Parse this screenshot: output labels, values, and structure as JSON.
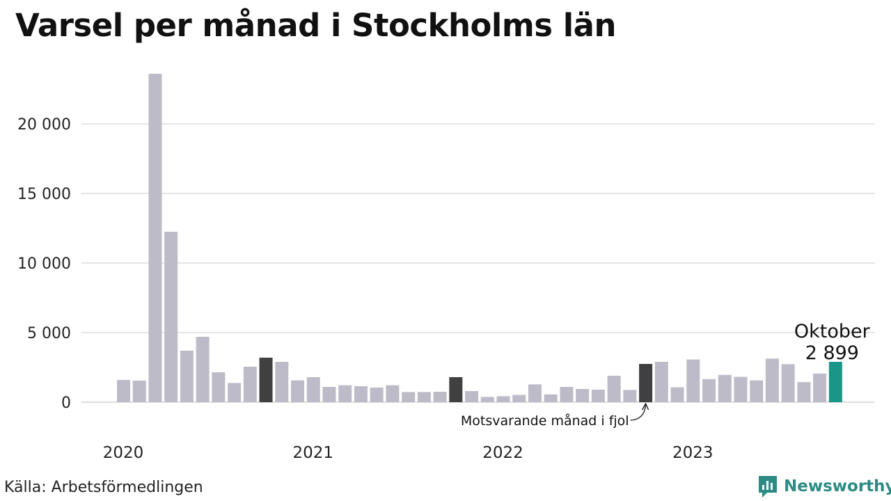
{
  "title": "Varsel per månad i Stockholms län",
  "source": "Källa: Arbetsförmedlingen",
  "brand": {
    "name": "Newsworthy",
    "icon": "chart-bubble-icon"
  },
  "colors": {
    "bar": "#bebbc9",
    "same_month_last_year": "#404040",
    "latest": "#1a9688",
    "grid": "#dedede",
    "brand": "#2c8b85"
  },
  "chart_data": {
    "type": "bar",
    "title": "Varsel per månad i Stockholms län",
    "xlabel": "",
    "ylabel": "",
    "ylim": [
      0,
      24000
    ],
    "yticks": [
      0,
      5000,
      10000,
      15000,
      20000
    ],
    "ytick_labels": [
      "0",
      "5 000",
      "10 000",
      "15 000",
      "20 000"
    ],
    "year_labels": [
      {
        "label": "2020",
        "month_index": 0
      },
      {
        "label": "2021",
        "month_index": 12
      },
      {
        "label": "2022",
        "month_index": 24
      },
      {
        "label": "2023",
        "month_index": 36
      }
    ],
    "grid": true,
    "categories": [
      "2020-01",
      "2020-02",
      "2020-03",
      "2020-04",
      "2020-05",
      "2020-06",
      "2020-07",
      "2020-08",
      "2020-09",
      "2020-10",
      "2020-11",
      "2020-12",
      "2021-01",
      "2021-02",
      "2021-03",
      "2021-04",
      "2021-05",
      "2021-06",
      "2021-07",
      "2021-08",
      "2021-09",
      "2021-10",
      "2021-11",
      "2021-12",
      "2022-01",
      "2022-02",
      "2022-03",
      "2022-04",
      "2022-05",
      "2022-06",
      "2022-07",
      "2022-08",
      "2022-09",
      "2022-10",
      "2022-11",
      "2022-12",
      "2023-01",
      "2023-02",
      "2023-03",
      "2023-04",
      "2023-05",
      "2023-06",
      "2023-07",
      "2023-08",
      "2023-09",
      "2023-10"
    ],
    "values": [
      1600,
      1550,
      23600,
      12250,
      3700,
      4700,
      2150,
      1380,
      2550,
      3200,
      2900,
      1570,
      1800,
      1100,
      1220,
      1150,
      1050,
      1220,
      730,
      730,
      750,
      1800,
      800,
      380,
      430,
      520,
      1280,
      560,
      1100,
      950,
      900,
      1900,
      880,
      2750,
      2900,
      1070,
      3070,
      1660,
      1960,
      1820,
      1570,
      3130,
      2730,
      1440,
      2060,
      2899
    ],
    "highlights": [
      {
        "index": 9,
        "role": "same_month_last_year"
      },
      {
        "index": 21,
        "role": "same_month_last_year"
      },
      {
        "index": 33,
        "role": "same_month_last_year"
      },
      {
        "index": 45,
        "role": "latest"
      }
    ],
    "annotations": [
      {
        "text": "Motsvarande månad i fjol",
        "index": 33
      },
      {
        "text": "Oktober",
        "index": 45
      },
      {
        "text": "2 899",
        "index": 45
      }
    ]
  }
}
